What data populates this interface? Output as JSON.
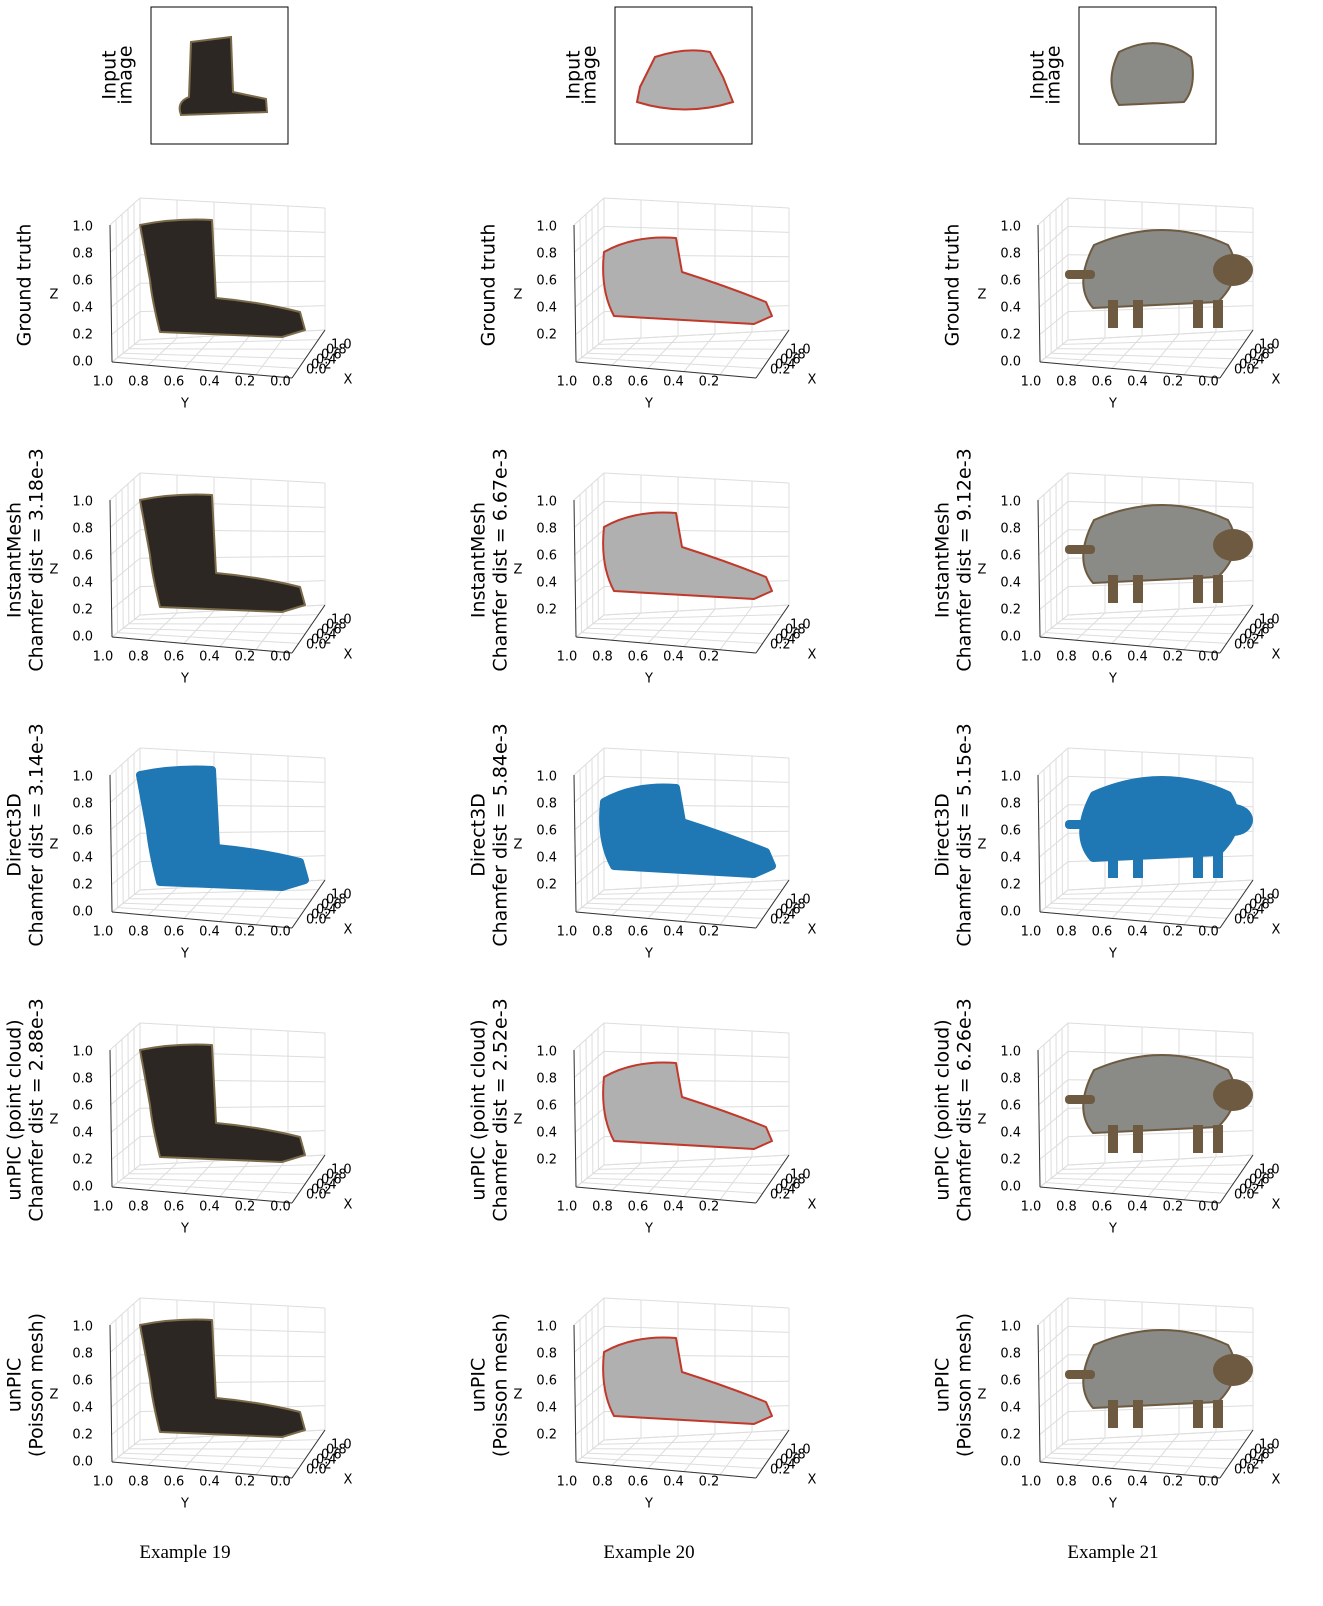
{
  "figure": {
    "axis_labels": {
      "x": "X",
      "y": "Y",
      "z": "Z"
    },
    "columns": [
      {
        "caption": "Example 19",
        "input_label": [
          "Input",
          "image"
        ],
        "panels": [
          {
            "label": [
              "Ground truth"
            ]
          },
          {
            "label": [
              "InstantMesh",
              "Chamfer dist = 3.18e-3"
            ]
          },
          {
            "label": [
              "Direct3D",
              "Chamfer dist = 3.14e-3"
            ]
          },
          {
            "label": [
              "unPIC (point cloud)",
              "Chamfer dist = 2.88e-3"
            ]
          },
          {
            "label": [
              "unPIC",
              "(Poisson mesh)"
            ]
          }
        ],
        "zticks": [
          "1.0",
          "0.8",
          "0.6",
          "0.4",
          "0.2",
          "0.0"
        ],
        "yticks": [
          "1.0",
          "0.8",
          "0.6",
          "0.4",
          "0.2",
          "0.0"
        ],
        "xticks": [
          "0.0",
          "0.2",
          "0.4",
          "0.6",
          "0.8",
          "1.0"
        ]
      },
      {
        "caption": "Example 20",
        "input_label": [
          "Input",
          "image"
        ],
        "panels": [
          {
            "label": [
              "Ground truth"
            ]
          },
          {
            "label": [
              "InstantMesh",
              "Chamfer dist = 6.67e-3"
            ]
          },
          {
            "label": [
              "Direct3D",
              "Chamfer dist = 5.84e-3"
            ]
          },
          {
            "label": [
              "unPIC (point cloud)",
              "Chamfer dist = 2.52e-3"
            ]
          },
          {
            "label": [
              "unPIC",
              "(Poisson mesh)"
            ]
          }
        ],
        "zticks": [
          "1.0",
          "0.8",
          "0.6",
          "0.4",
          "0.2"
        ],
        "yticks": [
          "1.0",
          "0.8",
          "0.6",
          "0.4",
          "0.2"
        ],
        "xticks": [
          "0.2",
          "0.4",
          "0.6",
          "0.8",
          "1.0"
        ]
      },
      {
        "caption": "Example 21",
        "input_label": [
          "Input",
          "image"
        ],
        "panels": [
          {
            "label": [
              "Ground truth"
            ]
          },
          {
            "label": [
              "InstantMesh",
              "Chamfer dist = 9.12e-3"
            ]
          },
          {
            "label": [
              "Direct3D",
              "Chamfer dist = 5.15e-3"
            ]
          },
          {
            "label": [
              "unPIC (point cloud)",
              "Chamfer dist = 6.26e-3"
            ]
          },
          {
            "label": [
              "unPIC",
              "(Poisson mesh)"
            ]
          }
        ],
        "zticks": [
          "1.0",
          "0.8",
          "0.6",
          "0.4",
          "0.2",
          "0.0"
        ],
        "yticks": [
          "1.0",
          "0.8",
          "0.6",
          "0.4",
          "0.2",
          "0.0"
        ],
        "xticks": [
          "0.0",
          "0.2",
          "0.4",
          "0.6",
          "0.8",
          "1.0"
        ]
      }
    ]
  }
}
